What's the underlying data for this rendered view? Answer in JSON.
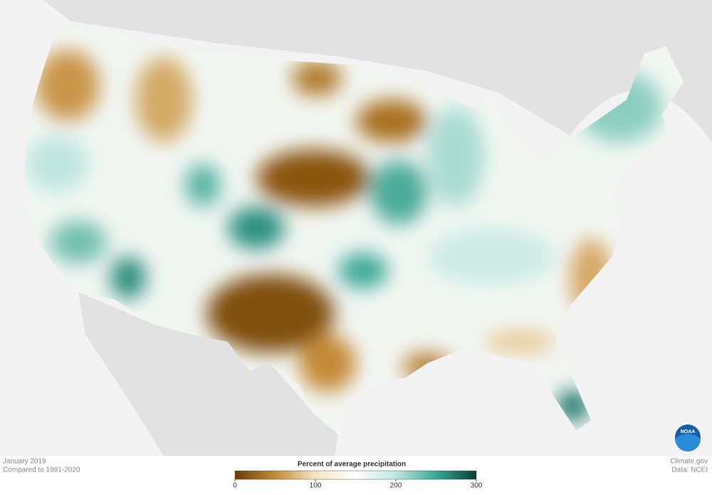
{
  "map": {
    "date": "January 2019",
    "baseline": "Compared to 1991-2020",
    "credit": "Climate.gov",
    "source": "Data: NCEI",
    "logo": "NOAA"
  },
  "legend": {
    "title": "Percent of average precipitation",
    "range": [
      0,
      300
    ],
    "ticks": [
      0,
      100,
      200,
      300
    ],
    "colors": [
      "#6b3d05",
      "#c48a35",
      "#f4e6c4",
      "#ffffff",
      "#bfe6df",
      "#3aa895",
      "#033f36"
    ]
  }
}
